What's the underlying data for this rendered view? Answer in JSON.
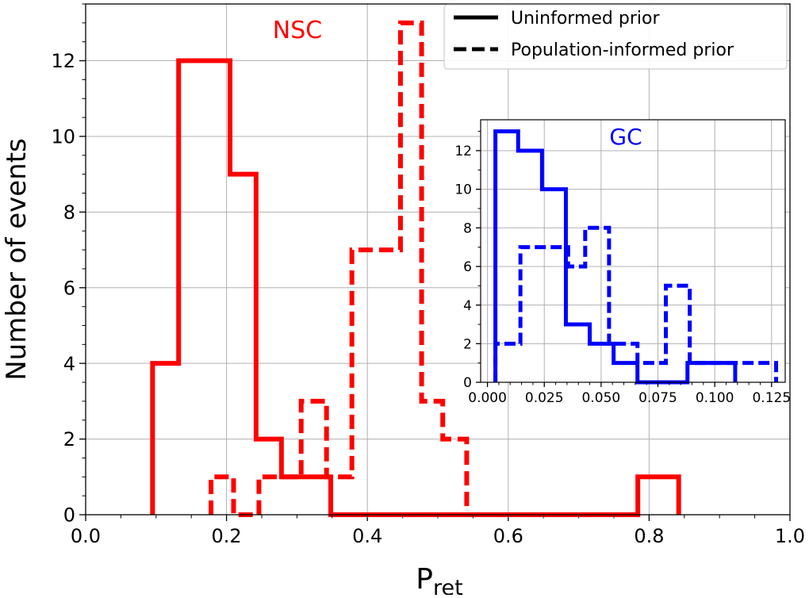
{
  "chart_data": [
    {
      "id": "main",
      "type": "step-histogram",
      "title": "",
      "xlabel_main": "P",
      "xlabel_sub": "ret",
      "ylabel": "Number of events",
      "xlim": [
        0.0,
        1.0
      ],
      "ylim": [
        0,
        13.5
      ],
      "xticks": [
        0.0,
        0.2,
        0.4,
        0.6,
        0.8,
        1.0
      ],
      "xtick_labels": [
        "0.0",
        "0.2",
        "0.4",
        "0.6",
        "0.8",
        "1.0"
      ],
      "yticks": [
        0,
        2,
        4,
        6,
        8,
        10,
        12
      ],
      "ytick_labels": [
        "0",
        "2",
        "4",
        "6",
        "8",
        "10",
        "12"
      ],
      "grid": true,
      "annotation": "NSC",
      "color": "#ff0000",
      "legend": {
        "placement": "top-right",
        "entries": [
          {
            "label": "Uninformed prior",
            "style": "solid"
          },
          {
            "label": "Population-informed prior",
            "style": "dashed"
          }
        ]
      },
      "series": [
        {
          "name": "Uninformed prior",
          "style": "solid",
          "bin_edges": [
            0.095,
            0.132,
            0.205,
            0.242,
            0.278,
            0.348,
            0.784,
            0.804,
            0.824,
            0.842
          ],
          "counts": [
            4,
            12,
            9,
            2,
            1,
            0,
            1,
            1,
            1
          ]
        },
        {
          "name": "Population-informed prior",
          "style": "dashed",
          "bin_edges": [
            0.178,
            0.21,
            0.246,
            0.306,
            0.342,
            0.378,
            0.447,
            0.477,
            0.507,
            0.541
          ],
          "counts": [
            1,
            0,
            1,
            3,
            1,
            7,
            13,
            3,
            2
          ]
        }
      ]
    },
    {
      "id": "inset",
      "type": "step-histogram",
      "xlim": [
        -0.003,
        0.131
      ],
      "ylim": [
        0,
        13.6
      ],
      "xticks": [
        0.0,
        0.025,
        0.05,
        0.075,
        0.1,
        0.125
      ],
      "xtick_labels": [
        "0.000",
        "0.025",
        "0.050",
        "0.075",
        "0.100",
        "0.125"
      ],
      "yticks": [
        0,
        2,
        4,
        6,
        8,
        10,
        12
      ],
      "ytick_labels": [
        "0",
        "2",
        "4",
        "6",
        "8",
        "10",
        "12"
      ],
      "grid": true,
      "annotation": "GC",
      "color": "#0000ff",
      "series": [
        {
          "name": "Uninformed prior",
          "style": "solid",
          "bin_edges": [
            0.0035,
            0.0135,
            0.024,
            0.0345,
            0.045,
            0.0555,
            0.066,
            0.077,
            0.088,
            0.0985,
            0.109
          ],
          "counts": [
            13,
            12,
            10,
            3,
            2,
            1,
            0,
            0,
            1,
            1
          ]
        },
        {
          "name": "Population-informed prior",
          "style": "dashed",
          "bin_edges": [
            0.0035,
            0.0145,
            0.0255,
            0.0355,
            0.043,
            0.0535,
            0.066,
            0.0785,
            0.089,
            0.1005,
            0.127
          ],
          "counts": [
            2,
            7,
            7,
            6,
            8,
            2,
            1,
            5,
            1,
            1
          ]
        }
      ]
    }
  ]
}
